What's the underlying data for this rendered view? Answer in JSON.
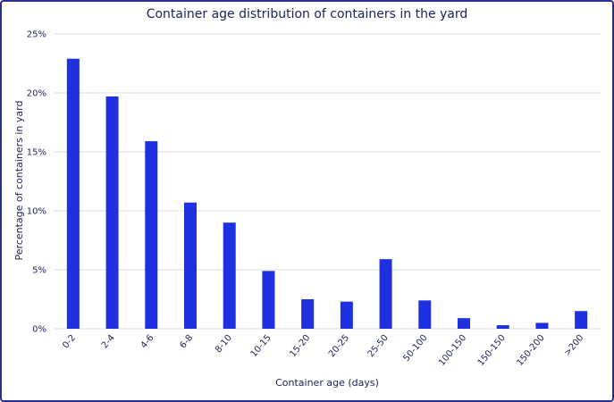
{
  "chart_data": {
    "type": "bar",
    "title": "Container age distribution of containers in the yard",
    "xlabel": "Container age (days)",
    "ylabel": "Percentage of containers in yard",
    "categories": [
      "0-2",
      "2-4",
      "4-6",
      "6-8",
      "8-10",
      "10-15",
      "15-20",
      "20-25",
      "25-50",
      "50-100",
      "100-150",
      "150-150",
      "150-200",
      ">200"
    ],
    "values": [
      22.9,
      19.7,
      15.9,
      10.7,
      9.0,
      4.9,
      2.5,
      2.3,
      5.9,
      2.4,
      0.9,
      0.3,
      0.5,
      1.5
    ],
    "ylim": [
      0,
      25
    ],
    "yticks": [
      0,
      5,
      10,
      15,
      20,
      25
    ],
    "ytick_labels": [
      "0%",
      "5%",
      "10%",
      "15%",
      "20%",
      "25%"
    ],
    "grid": true,
    "colors": {
      "bar": "#1e30e0",
      "grid": "#dcdcdc",
      "text": "#1d2157",
      "frame": "#2a2f8f"
    }
  }
}
